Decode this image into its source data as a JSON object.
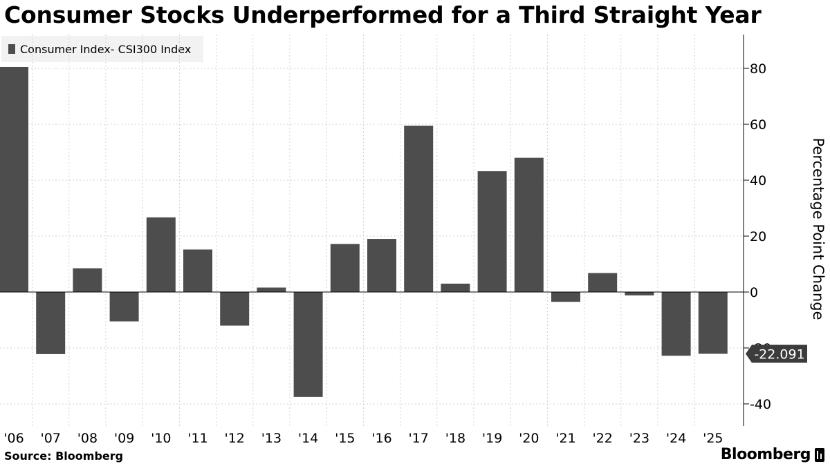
{
  "title": "Consumer Stocks Underperformed for a Third Straight Year",
  "source": "Source: Bloomberg",
  "brand": "Bloomberg",
  "colors": {
    "bar": "#4d4d4d",
    "grid": "#d0d0d0",
    "axis": "#000000",
    "callout_bg": "#3c3c3c",
    "legend_bg": "#f2f2f2"
  },
  "chart_data": {
    "type": "bar",
    "legend": [
      "Consumer Index- CSI300 Index"
    ],
    "ylabel": "Percentage Point Change",
    "xlabel": "",
    "ylim": [
      -48,
      92
    ],
    "yticks": [
      -40,
      -20,
      0,
      20,
      40,
      60,
      80
    ],
    "grid": true,
    "y_axis_side": "right",
    "categories": [
      "'06",
      "'07",
      "'08",
      "'09",
      "'10",
      "'11",
      "'12",
      "'13",
      "'14",
      "'15",
      "'16",
      "'17",
      "'18",
      "'19",
      "'20",
      "'21",
      "'22",
      "'23",
      "'24",
      "'25"
    ],
    "values": [
      80.5,
      -22.2,
      8.5,
      -10.5,
      26.7,
      15.2,
      -12.0,
      1.6,
      -37.5,
      17.2,
      19.0,
      59.5,
      3.0,
      43.2,
      48.0,
      -3.5,
      6.8,
      -1.2,
      -22.8,
      -22.091
    ],
    "callout": {
      "label": "-22.091",
      "value": -22.091
    }
  }
}
